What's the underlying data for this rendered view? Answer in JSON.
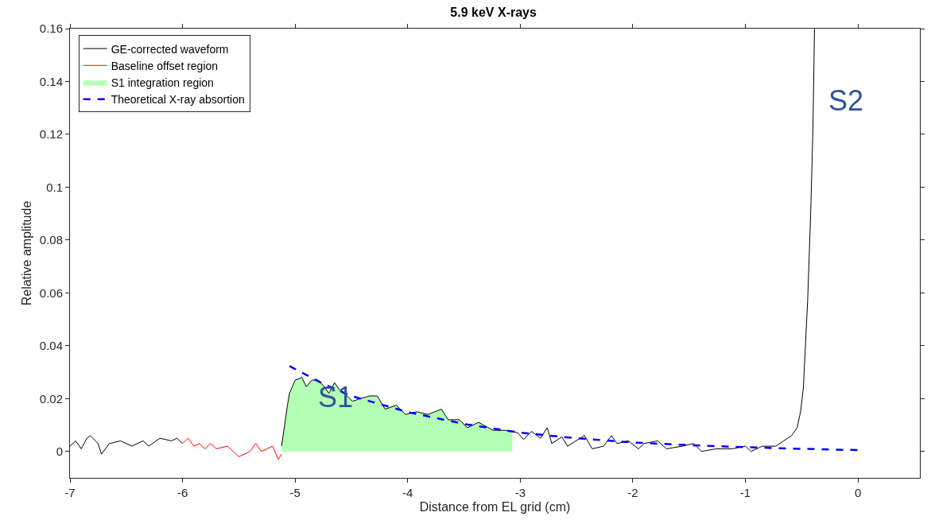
{
  "chart_data": {
    "type": "line",
    "title": "5.9 keV X-rays",
    "xlabel": "Distance from EL grid (cm)",
    "ylabel": "Relative amplitude",
    "xlim": [
      -7,
      0.55
    ],
    "ylim": [
      -0.01,
      0.16
    ],
    "xticks": [
      -7,
      -6,
      -5,
      -4,
      -3,
      -2,
      -1,
      0
    ],
    "yticks": [
      0,
      0.02,
      0.04,
      0.06,
      0.08,
      0.1,
      0.12,
      0.14,
      0.16
    ],
    "legend": "top left",
    "annotations": [
      "S1",
      "S2"
    ],
    "series": [
      {
        "name": "GE-corrected waveform",
        "color": "#000000",
        "line_style": "solid",
        "x": [
          -7.0,
          -6.95,
          -6.9,
          -6.85,
          -6.82,
          -6.75,
          -6.72,
          -6.65,
          -6.55,
          -6.45,
          -6.35,
          -6.3,
          -6.2,
          -6.1,
          -6.05,
          -6.0,
          -5.5,
          -5.12,
          -5.07,
          -5.05,
          -5.0,
          -4.94,
          -4.9,
          -4.85,
          -4.8,
          -4.75,
          -4.7,
          -4.65,
          -4.6,
          -4.54,
          -4.49,
          -4.42,
          -4.34,
          -4.27,
          -4.2,
          -4.1,
          -4.02,
          -3.92,
          -3.82,
          -3.7,
          -3.64,
          -3.54,
          -3.47,
          -3.37,
          -3.24,
          -3.14,
          -3.07,
          -3.02,
          -2.97,
          -2.9,
          -2.82,
          -2.76,
          -2.72,
          -2.63,
          -2.58,
          -2.43,
          -2.36,
          -2.26,
          -2.19,
          -2.14,
          -2.04,
          -1.95,
          -1.9,
          -1.78,
          -1.7,
          -1.56,
          -1.46,
          -1.39,
          -1.26,
          -1.12,
          -1.0,
          -0.95,
          -0.85,
          -0.73,
          -0.66,
          -0.59,
          -0.54,
          -0.51,
          -0.485,
          -0.447,
          -0.42,
          -0.4,
          -0.386
        ],
        "values": [
          0.002,
          0.004,
          0.001,
          0.005,
          0.006,
          0.003,
          -0.001,
          0.003,
          0.004,
          0.002,
          0.004,
          0.002,
          0.005,
          0.004,
          0.005,
          0.003,
          null,
          0.002,
          0.017,
          0.022,
          0.027,
          0.028,
          0.0245,
          0.027,
          0.027,
          0.025,
          0.022,
          0.026,
          0.023,
          0.021,
          0.019,
          0.02,
          0.021,
          0.021,
          0.016,
          0.0175,
          0.014,
          0.015,
          0.014,
          0.016,
          0.012,
          0.012,
          0.009,
          0.011,
          0.008,
          0.008,
          0.0076,
          0.007,
          0.0045,
          0.0076,
          0.005,
          0.009,
          0.003,
          0.0055,
          0.002,
          0.006,
          0.001,
          0.002,
          0.006,
          0.003,
          0.004,
          0.001,
          0.003,
          0.004,
          0.001,
          0.002,
          0.003,
          0.0,
          0.001,
          0.001,
          0.002,
          0.0,
          0.002,
          0.002,
          0.004,
          0.006,
          0.009,
          0.015,
          0.024,
          0.057,
          0.09,
          0.122,
          0.16
        ]
      },
      {
        "name": "Baseline offset region",
        "color": "#ff0000",
        "line_style": "solid",
        "x": [
          -6.0,
          -5.95,
          -5.9,
          -5.85,
          -5.8,
          -5.75,
          -5.7,
          -5.6,
          -5.55,
          -5.5,
          -5.4,
          -5.35,
          -5.3,
          -5.25,
          -5.2,
          -5.15,
          -5.12
        ],
        "values": [
          0.003,
          0.005,
          0.002,
          0.003,
          0.001,
          0.003,
          0.001,
          0.002,
          0.0,
          -0.002,
          0.0,
          0.003,
          0.0,
          0.001,
          0.002,
          -0.003,
          -0.001
        ]
      },
      {
        "name": "S1 integration region",
        "type": "area",
        "color": "#b3ffb3",
        "x": [
          -5.12,
          -5.07,
          -5.05,
          -5.0,
          -4.94,
          -4.9,
          -4.85,
          -4.8,
          -4.75,
          -4.7,
          -4.65,
          -4.6,
          -4.54,
          -4.49,
          -4.42,
          -4.34,
          -4.27,
          -4.2,
          -4.1,
          -4.02,
          -3.92,
          -3.82,
          -3.7,
          -3.64,
          -3.54,
          -3.47,
          -3.37,
          -3.24,
          -3.14,
          -3.07
        ],
        "values": [
          0.002,
          0.017,
          0.022,
          0.027,
          0.028,
          0.0245,
          0.027,
          0.027,
          0.025,
          0.022,
          0.026,
          0.023,
          0.021,
          0.019,
          0.02,
          0.021,
          0.021,
          0.016,
          0.0175,
          0.014,
          0.015,
          0.014,
          0.016,
          0.012,
          0.012,
          0.009,
          0.011,
          0.008,
          0.008,
          0.0076
        ]
      },
      {
        "name": "Theoretical X-ray absortion",
        "color": "#0000ff",
        "line_style": "dashed",
        "x": [
          -5.05,
          -4.75,
          -4.5,
          -4.0,
          -3.5,
          -3.0,
          -2.5,
          -2.0,
          -1.5,
          -1.0,
          -0.5,
          0.0
        ],
        "values": [
          0.0323,
          0.0256,
          0.021,
          0.0149,
          0.0104,
          0.0071,
          0.005,
          0.0034,
          0.0024,
          0.0016,
          0.001,
          0.0005
        ]
      }
    ]
  }
}
